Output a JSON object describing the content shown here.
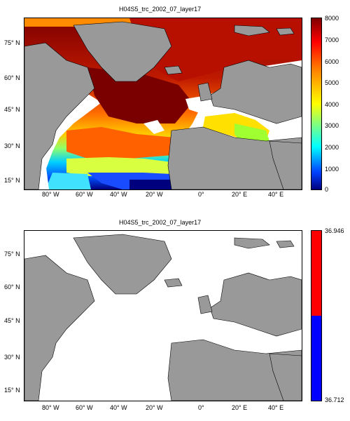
{
  "panels": [
    {
      "title": "H04S5_trc_2002_07_layer17",
      "lat_ticks": [
        "75° N",
        "60° N",
        "45° N",
        "30° N",
        "15° N"
      ],
      "lon_ticks": [
        "80° W",
        "60° W",
        "40° W",
        "20° W",
        "0°",
        "20° E",
        "40° E"
      ],
      "colorbar": {
        "ticks": [
          "8000",
          "7000",
          "6000",
          "5000",
          "4000",
          "3000",
          "2000",
          "1000",
          "0"
        ],
        "colormap": "jet",
        "min": 0,
        "max": 8000
      }
    },
    {
      "title": "H04S5_trc_2002_07_layer17",
      "lat_ticks": [
        "75° N",
        "60° N",
        "45° N",
        "30° N",
        "15° N"
      ],
      "lon_ticks": [
        "80° W",
        "60° W",
        "40° W",
        "20° W",
        "0°",
        "20° E",
        "40° E"
      ],
      "colorbar": {
        "ticks": [
          "36.946",
          "36.712"
        ],
        "colors": [
          "#ff0000",
          "#0000ff"
        ]
      }
    }
  ],
  "colors": {
    "land": "#999999",
    "ocean_masked": "#ffffff",
    "coast": "#000000"
  }
}
